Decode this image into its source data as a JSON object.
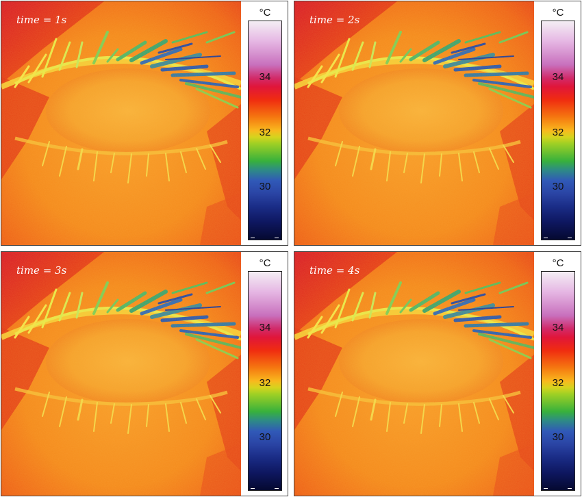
{
  "panels": [
    {
      "time_label": "time = 1s"
    },
    {
      "time_label": "time = 2s"
    },
    {
      "time_label": "time = 3s"
    },
    {
      "time_label": "time = 4s"
    }
  ],
  "colorbar": {
    "unit": "°C",
    "ticks": [
      "34",
      "32",
      "30"
    ],
    "colors": [
      "#f4eef4",
      "#c870bd",
      "#e0163a",
      "#f57810",
      "#f9b81e",
      "#a0d024",
      "#38b13c",
      "#3059b8",
      "#0e1760"
    ]
  }
}
